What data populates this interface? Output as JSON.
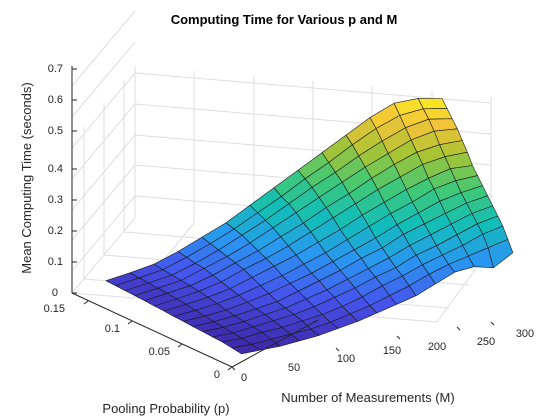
{
  "chart_data": {
    "type": "surface",
    "title": "Computing Time for Various p and M",
    "xlabel": "Number of Measurements (M)",
    "ylabel": "Pooling Probability (p)",
    "zlabel": "Mean Computing Time (seconds)",
    "x_ticks": [
      "0",
      "50",
      "100",
      "150",
      "200",
      "250",
      "300"
    ],
    "y_ticks": [
      "0",
      "0.05",
      "0.1",
      "0.15"
    ],
    "z_ticks": [
      "0",
      "0.1",
      "0.2",
      "0.3",
      "0.4",
      "0.5",
      "0.6",
      "0.7"
    ],
    "xlim": [
      0,
      300
    ],
    "ylim": [
      0,
      0.16
    ],
    "zlim": [
      0,
      0.7
    ],
    "grid": true,
    "colormap": "parula",
    "x": [
      20,
      40,
      60,
      80,
      100,
      120,
      140,
      160,
      180,
      200,
      220,
      240,
      260,
      280,
      300
    ],
    "y": [
      0.01,
      0.02,
      0.03,
      0.04,
      0.05,
      0.06,
      0.07,
      0.08,
      0.09,
      0.1,
      0.11,
      0.12,
      0.13,
      0.14,
      0.15
    ],
    "z": [
      [
        0.02,
        0.025,
        0.03,
        0.04,
        0.05,
        0.065,
        0.08,
        0.1,
        0.12,
        0.14,
        0.17,
        0.2,
        0.21,
        0.2,
        0.24
      ],
      [
        0.025,
        0.03,
        0.04,
        0.05,
        0.06,
        0.075,
        0.095,
        0.115,
        0.14,
        0.165,
        0.195,
        0.22,
        0.24,
        0.26,
        0.28
      ],
      [
        0.03,
        0.036,
        0.05,
        0.06,
        0.075,
        0.09,
        0.11,
        0.135,
        0.165,
        0.19,
        0.22,
        0.245,
        0.27,
        0.3,
        0.32
      ],
      [
        0.032,
        0.04,
        0.055,
        0.07,
        0.085,
        0.105,
        0.13,
        0.155,
        0.185,
        0.21,
        0.245,
        0.27,
        0.3,
        0.33,
        0.35
      ],
      [
        0.035,
        0.045,
        0.06,
        0.078,
        0.095,
        0.12,
        0.145,
        0.175,
        0.205,
        0.235,
        0.27,
        0.3,
        0.33,
        0.36,
        0.38
      ],
      [
        0.037,
        0.05,
        0.066,
        0.085,
        0.105,
        0.135,
        0.165,
        0.195,
        0.23,
        0.26,
        0.3,
        0.33,
        0.36,
        0.39,
        0.41
      ],
      [
        0.04,
        0.055,
        0.072,
        0.095,
        0.12,
        0.15,
        0.18,
        0.215,
        0.25,
        0.285,
        0.325,
        0.36,
        0.395,
        0.42,
        0.44
      ],
      [
        0.042,
        0.06,
        0.08,
        0.105,
        0.135,
        0.165,
        0.2,
        0.235,
        0.275,
        0.315,
        0.355,
        0.39,
        0.43,
        0.455,
        0.47
      ],
      [
        0.045,
        0.066,
        0.088,
        0.115,
        0.15,
        0.185,
        0.22,
        0.26,
        0.3,
        0.345,
        0.385,
        0.425,
        0.46,
        0.49,
        0.5
      ],
      [
        0.047,
        0.07,
        0.095,
        0.125,
        0.165,
        0.2,
        0.24,
        0.285,
        0.33,
        0.375,
        0.42,
        0.46,
        0.5,
        0.525,
        0.54
      ],
      [
        0.05,
        0.075,
        0.1,
        0.135,
        0.175,
        0.215,
        0.26,
        0.305,
        0.355,
        0.4,
        0.45,
        0.495,
        0.535,
        0.56,
        0.575
      ],
      [
        0.052,
        0.078,
        0.105,
        0.145,
        0.185,
        0.23,
        0.28,
        0.33,
        0.38,
        0.43,
        0.48,
        0.525,
        0.57,
        0.6,
        0.61
      ],
      [
        0.054,
        0.082,
        0.11,
        0.15,
        0.195,
        0.245,
        0.295,
        0.35,
        0.405,
        0.455,
        0.51,
        0.56,
        0.605,
        0.635,
        0.64
      ],
      [
        0.056,
        0.085,
        0.115,
        0.158,
        0.205,
        0.255,
        0.31,
        0.365,
        0.425,
        0.48,
        0.54,
        0.595,
        0.64,
        0.665,
        0.67
      ],
      [
        0.058,
        0.088,
        0.12,
        0.165,
        0.215,
        0.265,
        0.325,
        0.385,
        0.445,
        0.505,
        0.565,
        0.625,
        0.675,
        0.695,
        0.7
      ]
    ]
  }
}
